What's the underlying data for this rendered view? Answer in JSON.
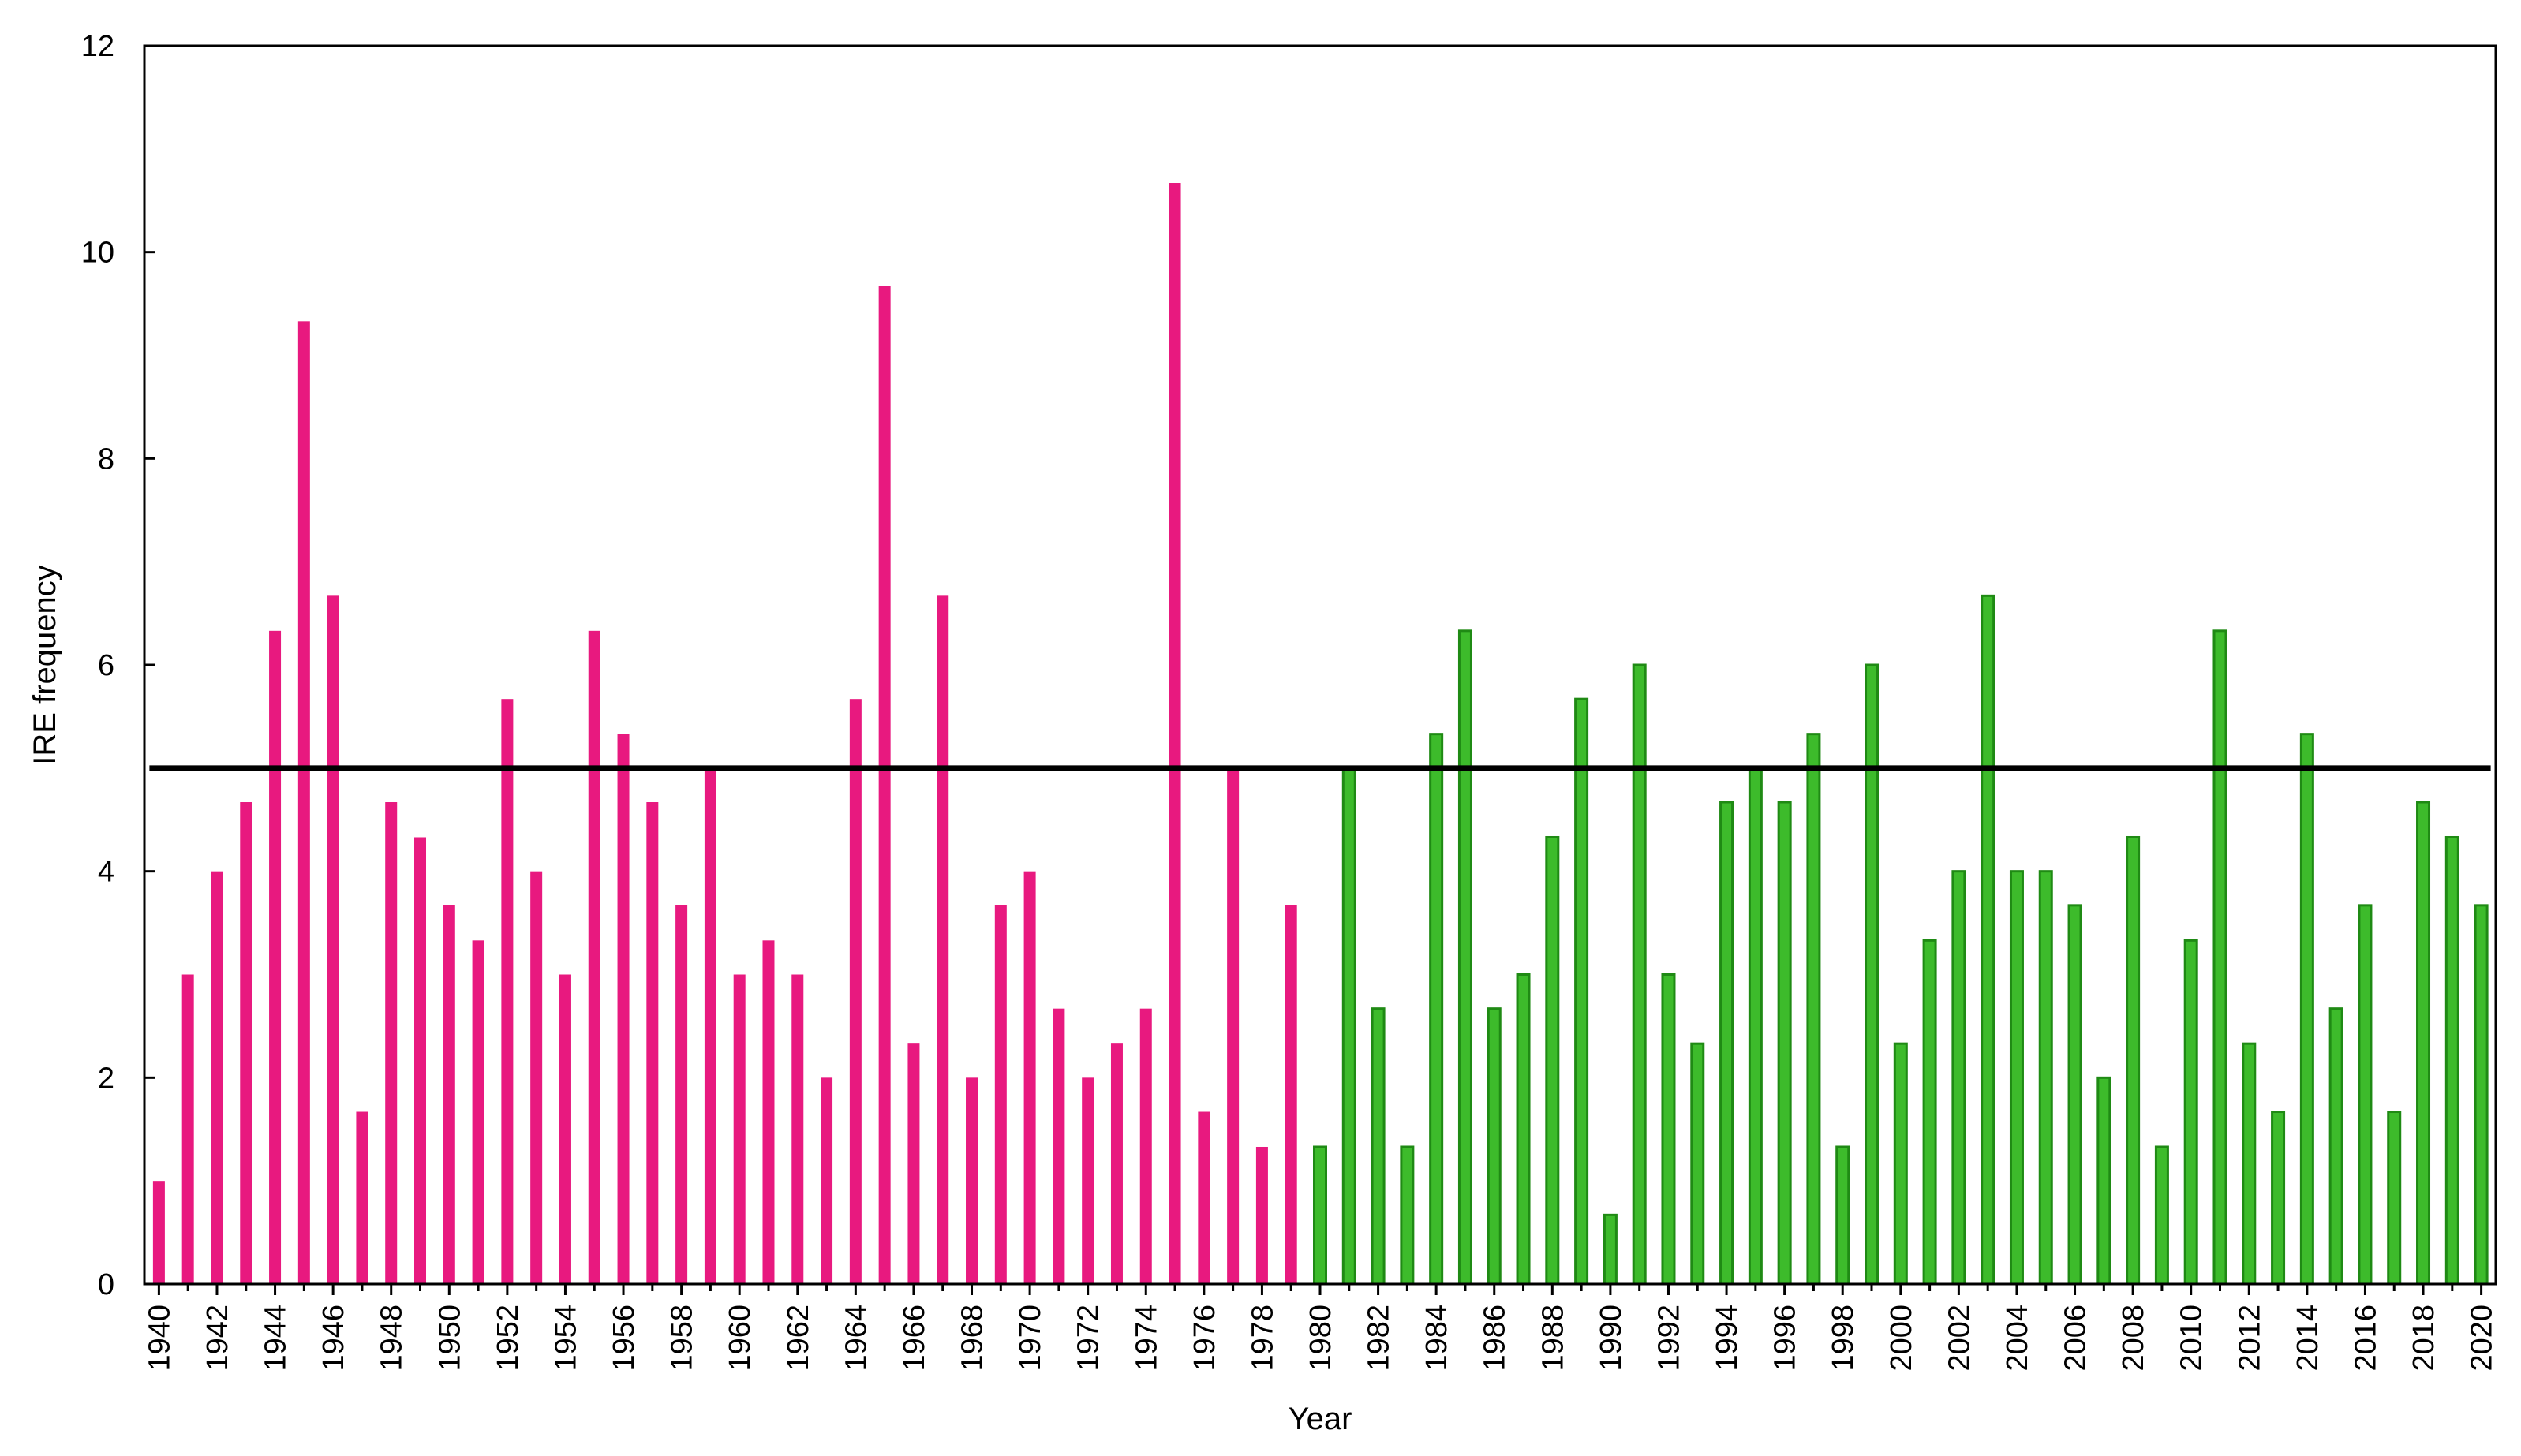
{
  "chart_data": {
    "type": "bar",
    "title": "",
    "xlabel": "Year",
    "ylabel": "IRE frequency",
    "ylim": [
      0,
      12
    ],
    "yticks": [
      0,
      2,
      4,
      6,
      8,
      10,
      12
    ],
    "grid": false,
    "legend": "none",
    "reference_line": {
      "value": 5,
      "color": "#000000"
    },
    "colors": {
      "period_1940_1980": "#e8197f",
      "period_1980_2020": "#3dbb2b",
      "period_1980_2020_edge": "#1f8a14",
      "axis": "#000000"
    },
    "x_tick_labels": [
      "1940",
      "1942",
      "1944",
      "1946",
      "1948",
      "1950",
      "1952",
      "1954",
      "1956",
      "1958",
      "1960",
      "1962",
      "1964",
      "1966",
      "1968",
      "1970",
      "1972",
      "1974",
      "1976",
      "1978",
      "1980",
      "1982",
      "1984",
      "1986",
      "1988",
      "1990",
      "1992",
      "1994",
      "1996",
      "1998",
      "2000",
      "2002",
      "2004",
      "2006",
      "2008",
      "2010",
      "2012",
      "2014",
      "2016",
      "2018",
      "2020"
    ],
    "series": [
      {
        "color": "#e8197f",
        "x": [
          1940,
          1941,
          1942,
          1943,
          1944,
          1945,
          1946,
          1947,
          1948,
          1949,
          1950,
          1951,
          1952,
          1953,
          1954,
          1955,
          1956,
          1957,
          1958,
          1959,
          1960,
          1961,
          1962,
          1963,
          1964,
          1965,
          1966,
          1967,
          1968,
          1969,
          1970,
          1971,
          1972,
          1973,
          1974,
          1975,
          1976,
          1977,
          1978,
          1979
        ],
        "values": [
          1.0,
          3.0,
          4.0,
          4.67,
          6.33,
          9.33,
          6.67,
          1.67,
          4.67,
          4.33,
          3.67,
          3.33,
          5.67,
          4.0,
          3.0,
          6.33,
          5.33,
          4.67,
          3.67,
          5.0,
          3.0,
          3.33,
          3.0,
          2.0,
          5.67,
          9.67,
          2.33,
          6.67,
          2.0,
          3.67,
          4.0,
          2.67,
          2.0,
          2.33,
          2.67,
          10.67,
          1.67,
          5.0,
          1.33,
          3.67
        ]
      },
      {
        "color": "#3dbb2b",
        "x": [
          1980,
          1981,
          1982,
          1983,
          1984,
          1985,
          1986,
          1987,
          1988,
          1989,
          1990,
          1991,
          1992,
          1993,
          1994,
          1995,
          1996,
          1997,
          1998,
          1999,
          2000,
          2001,
          2002,
          2003,
          2004,
          2005,
          2006,
          2007,
          2008,
          2009,
          2010,
          2011,
          2012,
          2013,
          2014,
          2015,
          2016,
          2017,
          2018,
          2019,
          2020
        ],
        "values": [
          1.33,
          5.0,
          2.67,
          1.33,
          5.33,
          6.33,
          2.67,
          3.0,
          4.33,
          5.67,
          0.67,
          6.0,
          3.0,
          2.33,
          4.67,
          5.0,
          4.67,
          5.33,
          1.33,
          6.0,
          2.33,
          3.33,
          4.0,
          6.67,
          4.0,
          4.0,
          3.67,
          2.0,
          4.33,
          1.33,
          3.33,
          6.33,
          2.33,
          1.67,
          5.33,
          2.67,
          3.67,
          1.67,
          4.67,
          4.33,
          3.67
        ]
      }
    ]
  }
}
